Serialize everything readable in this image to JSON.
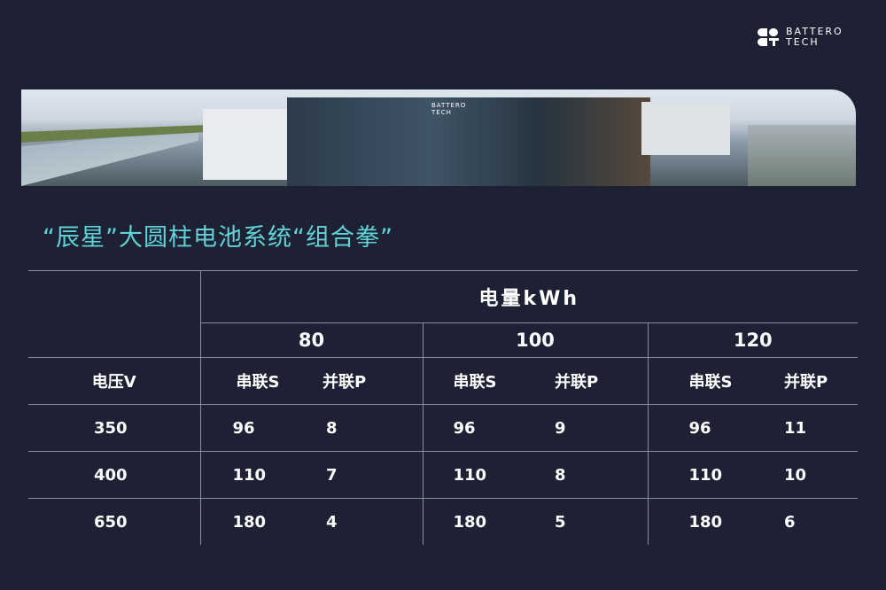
{
  "logo": {
    "line1": "BATTERO",
    "line2": "TECH"
  },
  "banner": {
    "sign": "BATTERO TECH"
  },
  "title": "“辰星”大圆柱电池系统“组合拳”",
  "table": {
    "energy_header": "电量kWh",
    "voltage_header": "电压V",
    "capacities": [
      "80",
      "100",
      "120"
    ],
    "series_label": "串联S",
    "parallel_label": "并联P",
    "rows": [
      {
        "voltage": "350",
        "values": [
          [
            "96",
            "8"
          ],
          [
            "96",
            "9"
          ],
          [
            "96",
            "11"
          ]
        ]
      },
      {
        "voltage": "400",
        "values": [
          [
            "110",
            "7"
          ],
          [
            "110",
            "8"
          ],
          [
            "110",
            "10"
          ]
        ]
      },
      {
        "voltage": "650",
        "values": [
          [
            "180",
            "4"
          ],
          [
            "180",
            "5"
          ],
          [
            "180",
            "6"
          ]
        ]
      }
    ]
  },
  "colors": {
    "background": "#1e2133",
    "title": "#5fd3d6",
    "grid": "#8a8f9c"
  }
}
